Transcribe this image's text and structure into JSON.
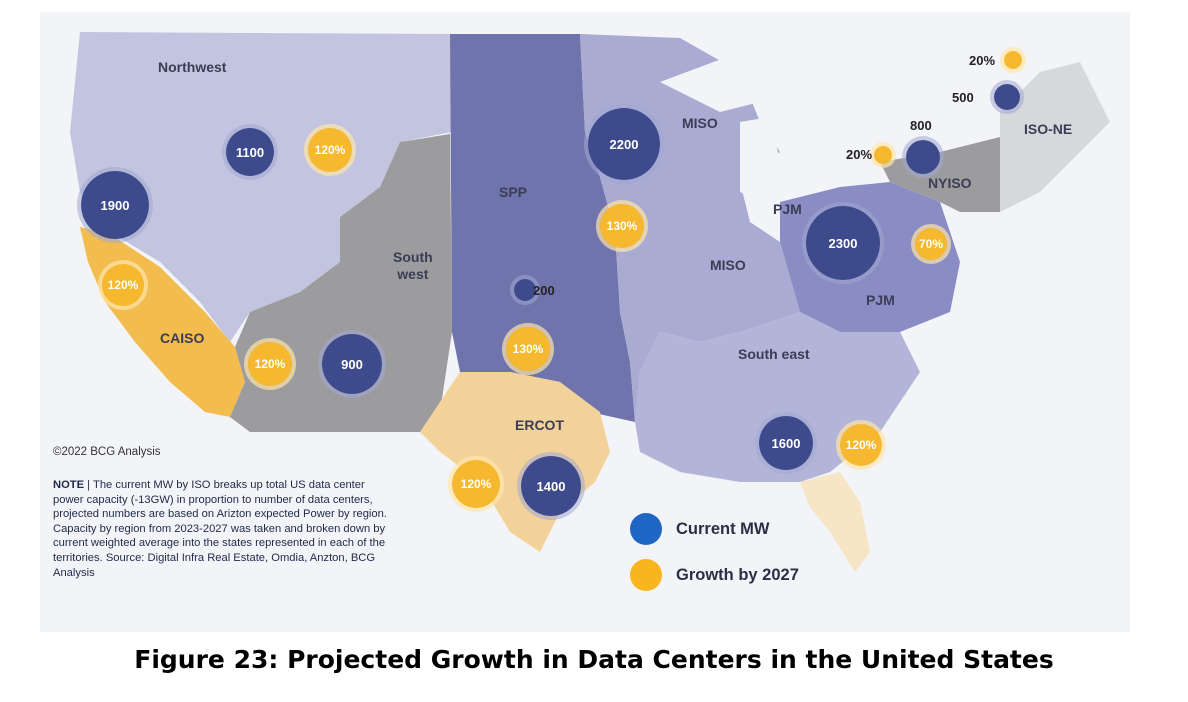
{
  "regions": {
    "northwest": "Northwest",
    "southwest": "South\nwest",
    "caiso": "CAISO",
    "spp": "SPP",
    "miso_north": "MISO",
    "miso_south": "MISO",
    "pjm_west": "PJM",
    "pjm_east": "PJM",
    "nyiso": "NYISO",
    "iso_ne": "ISO-NE",
    "southeast": "South east",
    "ercot": "ERCOT"
  },
  "current_mw": {
    "northwest": "1100",
    "california": "1900",
    "southwest": "900",
    "spp": "200",
    "miso": "2200",
    "pjm": "2300",
    "nyiso": "800",
    "iso_ne": "500",
    "southeast": "1600",
    "ercot": "1400"
  },
  "growth_2027": {
    "northwest": "120%",
    "california": "120%",
    "southwest": "120%",
    "miso": "130%",
    "spp": "130%",
    "pjm": "70%",
    "nyiso": "20%",
    "iso_ne": "20%",
    "southeast": "120%",
    "ercot": "120%"
  },
  "copyright": "©2022 BCG Analysis",
  "note": {
    "label": "NOTE",
    "separator": " | ",
    "text": "The current MW by ISO breaks up total US data center power capacity (-13GW) in proportion to number of data centers, projected numbers are based on Arizton expected Power by region. Capacity by region from 2023-2027 was taken and broken down by current weighted average into the states represented in each of the territories. Source: Digital Infra Real Estate, Omdia, Anzton, BCG Analysis"
  },
  "legend": {
    "current": "Current MW",
    "growth": "Growth by 2027"
  },
  "colors": {
    "current_mw": "#3d4a8c",
    "growth": "#f5b82e",
    "legend_current": "#1f66c4",
    "legend_growth": "#f7b51e",
    "northwest_fill": "#c3c5e0",
    "southwest_fill": "#9c9c9e",
    "spp_fill": "#6f74ad",
    "miso_fill": "#a9abd2",
    "pjm_fill": "#8a8dc4",
    "ercot_fill": "#f3d29a",
    "caiso_fill": "#f2bc4e",
    "iso_ne_fill": "#d6d8dc"
  },
  "caption": "Figure 23: Projected Growth in Data Centers in the United States"
}
